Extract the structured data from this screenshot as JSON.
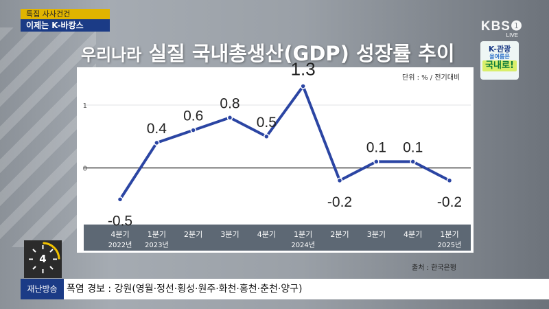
{
  "program": {
    "tag": "특집 사사건건",
    "subtitle": "이제는 K-바캉스"
  },
  "broadcaster": {
    "logo_text": "KBS❶",
    "live_label": "LIVE"
  },
  "campaign_logo": {
    "line1": "K-관광",
    "line2": "올여름은",
    "line3": "국내로!"
  },
  "title": {
    "prefix": "우리나라",
    "main": "실질 국내총생산(GDP) 성장률 추이"
  },
  "unit_label": "단위 : % / 전기대비",
  "source_label": "출처 : 한국은행",
  "colors": {
    "line": "#2b45a3",
    "axis_band": "#5d6874",
    "ticker_label_bg": "#1b3b86"
  },
  "chart_data": {
    "type": "line",
    "categories": [
      {
        "quarter": "4분기",
        "year": "2022년"
      },
      {
        "quarter": "1분기",
        "year": "2023년"
      },
      {
        "quarter": "2분기",
        "year": ""
      },
      {
        "quarter": "3분기",
        "year": ""
      },
      {
        "quarter": "4분기",
        "year": ""
      },
      {
        "quarter": "1분기",
        "year": "2024년"
      },
      {
        "quarter": "2분기",
        "year": ""
      },
      {
        "quarter": "3분기",
        "year": ""
      },
      {
        "quarter": "4분기",
        "year": ""
      },
      {
        "quarter": "1분기",
        "year": "2025년"
      }
    ],
    "values": [
      -0.5,
      0.4,
      0.6,
      0.8,
      0.5,
      1.3,
      -0.2,
      0.1,
      0.1,
      -0.2
    ],
    "data_labels": [
      "-0.5",
      "0.4",
      "0.6",
      "0.8",
      "0.5",
      "1.3",
      "-0.2",
      "0.1",
      "0.1",
      "-0.2"
    ],
    "y_ticks": [
      0,
      1
    ],
    "ylim": [
      -0.9,
      1.6
    ],
    "title": "실질 국내총생산(GDP) 성장률 추이",
    "ylabel": "단위 : % / 전기대비",
    "legend": "none"
  },
  "clock": {
    "value": "4"
  },
  "ticker": {
    "label": "재난방송",
    "text": "폭염 경보 : 강원(영월·정선·횡성·원주·화천·홍천·춘천·양구)"
  }
}
